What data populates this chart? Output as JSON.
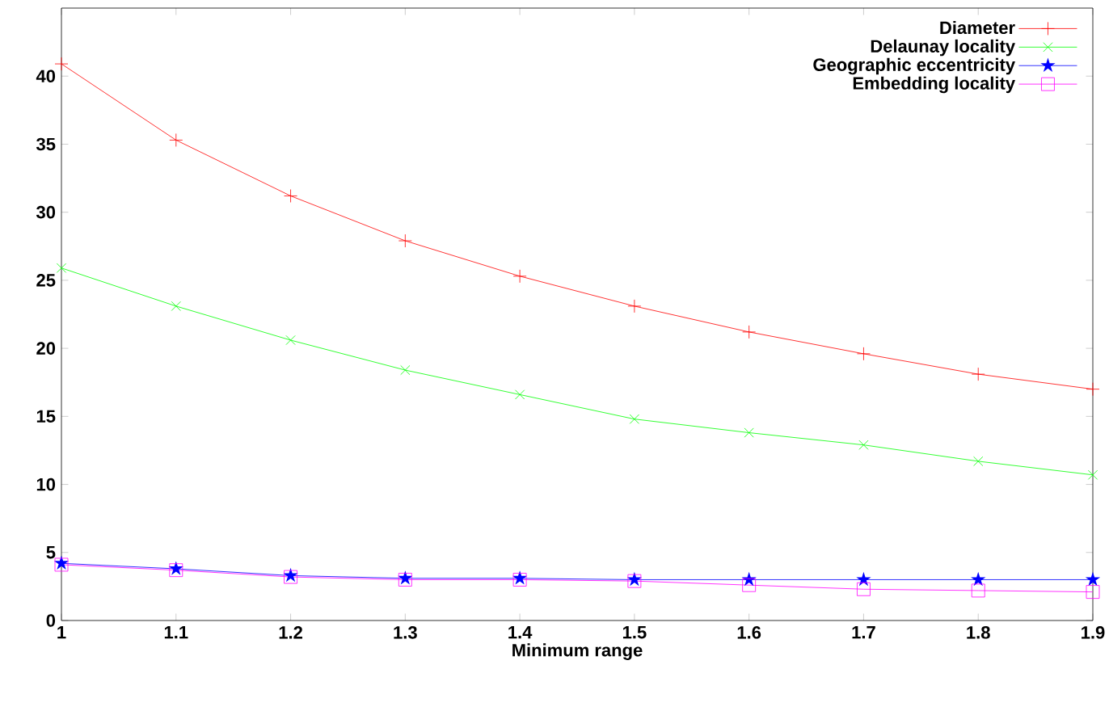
{
  "chart_data": {
    "type": "line",
    "xlabel": "Minimum range",
    "x": [
      1,
      1.1,
      1.2,
      1.3,
      1.4,
      1.5,
      1.6,
      1.7,
      1.8,
      1.9
    ],
    "series": [
      {
        "name": "Diameter",
        "color": "#ff0000",
        "marker": "plus",
        "values": [
          40.9,
          35.3,
          31.2,
          27.9,
          25.3,
          23.1,
          21.2,
          19.6,
          18.1,
          17.0
        ]
      },
      {
        "name": "Delaunay locality",
        "color": "#00ff00",
        "marker": "cross",
        "values": [
          25.9,
          23.1,
          20.6,
          18.4,
          16.6,
          14.8,
          13.8,
          12.9,
          11.7,
          10.7
        ]
      },
      {
        "name": "Geographic eccentricity",
        "color": "#0000ff",
        "marker": "star",
        "values": [
          4.2,
          3.8,
          3.3,
          3.1,
          3.1,
          3.0,
          3.0,
          3.0,
          3.0,
          3.0
        ]
      },
      {
        "name": "Embedding locality",
        "color": "#ff00ff",
        "marker": "square",
        "values": [
          4.1,
          3.7,
          3.2,
          3.0,
          3.0,
          2.9,
          2.6,
          2.3,
          2.2,
          2.1
        ]
      }
    ],
    "xlim": [
      1,
      1.9
    ],
    "ylim": [
      0,
      45
    ],
    "xticks": [
      1,
      1.1,
      1.2,
      1.3,
      1.4,
      1.5,
      1.6,
      1.7,
      1.8,
      1.9
    ],
    "yticks": [
      0,
      5,
      10,
      15,
      20,
      25,
      30,
      35,
      40
    ],
    "grid": false,
    "legend": "top right",
    "line_style": "solid"
  }
}
